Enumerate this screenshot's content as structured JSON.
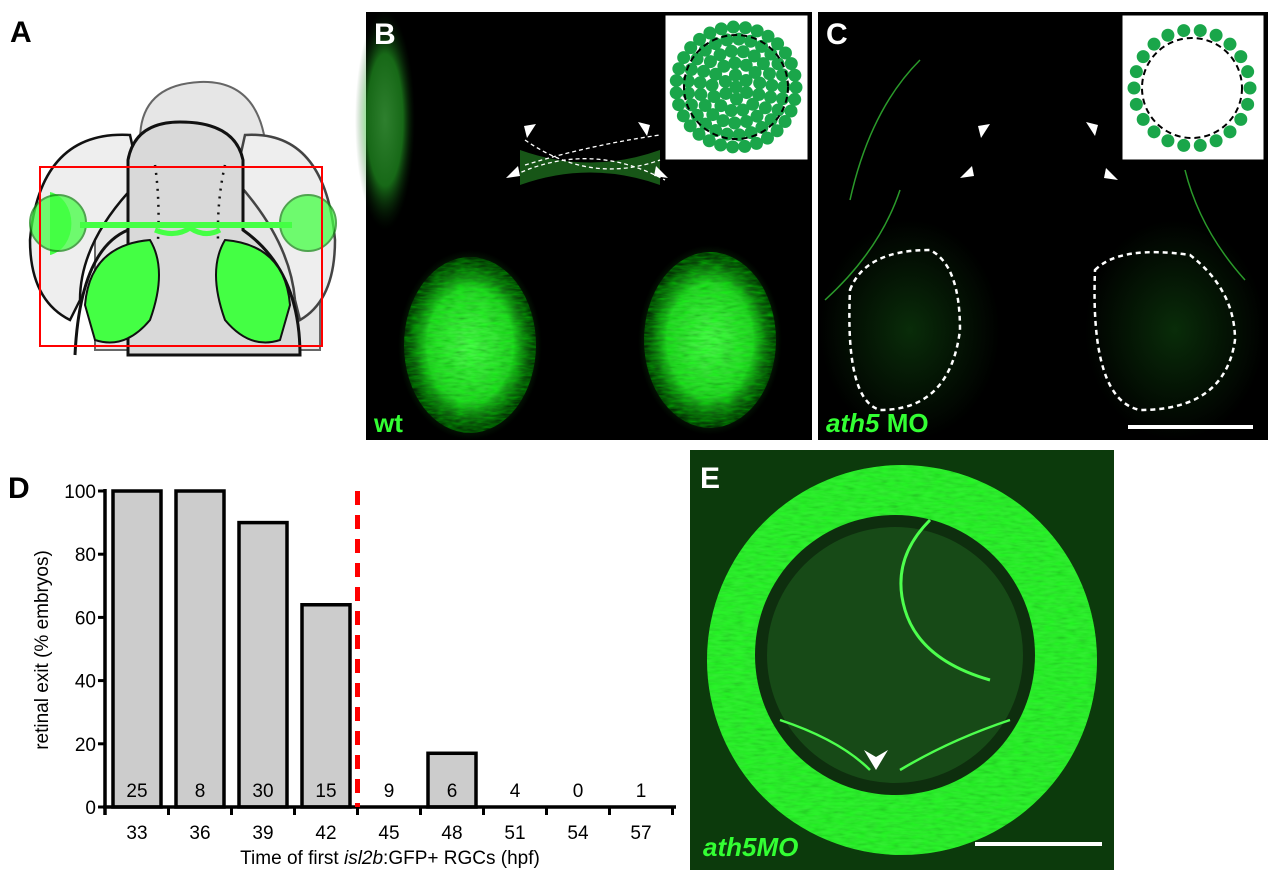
{
  "panels": {
    "a": {
      "label": "A"
    },
    "b": {
      "label": "B",
      "caption": "wt"
    },
    "c": {
      "label": "C",
      "caption_italic": "ath5",
      "caption_rest": " MO"
    },
    "d": {
      "label": "D"
    },
    "e": {
      "label": "E",
      "caption": "ath5MO"
    }
  },
  "colors": {
    "gfp": "#33ff33",
    "box": "#ff0000",
    "bar_fill": "#cccccc",
    "threshold_line": "#ff0000",
    "inset_dot": "#1aa64a"
  },
  "chart_data": {
    "type": "bar",
    "categories": [
      "33",
      "36",
      "39",
      "42",
      "45",
      "48",
      "51",
      "54",
      "57"
    ],
    "values": [
      100,
      100,
      90,
      64,
      0,
      17,
      0,
      0,
      0
    ],
    "counts": [
      "25",
      "8",
      "30",
      "15",
      "9",
      "6",
      "4",
      "0",
      "1"
    ],
    "yticks": [
      0,
      20,
      40,
      60,
      80,
      100
    ],
    "ylim": [
      0,
      100
    ],
    "ylabel": "retinal exit (% embryos)",
    "xlabel_prefix": "Time of first ",
    "xlabel_italic": "isl2b",
    "xlabel_suffix": ":GFP+ RGCs (hpf)",
    "threshold_between": [
      "42",
      "45"
    ],
    "grid": false,
    "legend": "none"
  }
}
